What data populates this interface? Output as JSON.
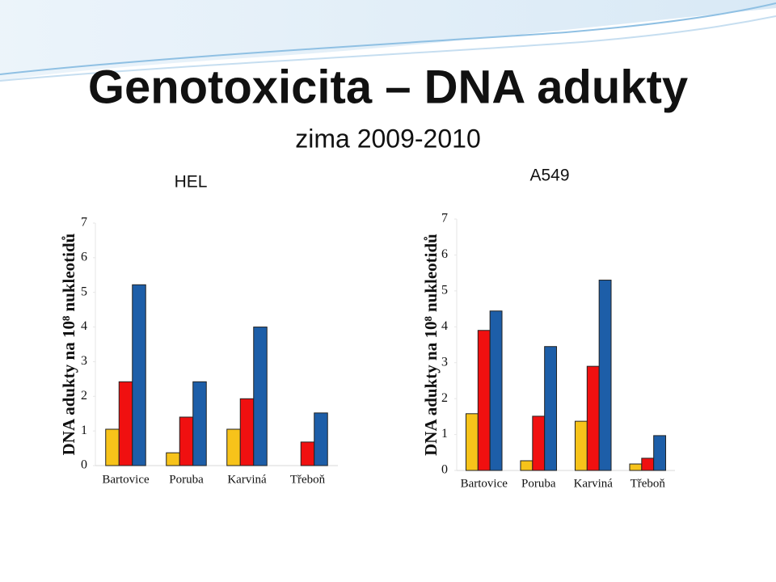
{
  "title": "Genotoxicita – DNA adukty",
  "subtitle": "zima 2009-2010",
  "chart_data": [
    {
      "type": "bar",
      "title": "HEL",
      "y_label": "DNA adukty na 10⁸ nukleotidů",
      "categories": [
        "Bartovice",
        "Poruba",
        "Karviná",
        "Třeboň"
      ],
      "series": [
        {
          "color": "#f7c31a",
          "values": [
            1.05,
            0.37,
            1.05,
            null
          ]
        },
        {
          "color": "#f01010",
          "values": [
            2.42,
            1.4,
            1.93,
            0.68
          ]
        },
        {
          "color": "#1d5ea8",
          "values": [
            5.22,
            2.42,
            4.0,
            1.52
          ]
        }
      ],
      "ylim": [
        0,
        7
      ],
      "yticks": [
        0,
        1,
        2,
        3,
        4,
        5,
        6,
        7
      ],
      "grid": false
    },
    {
      "type": "bar",
      "title": "A549",
      "y_label": "DNA adukty na 10⁸ nukleotidů",
      "categories": [
        "Bartovice",
        "Poruba",
        "Karviná",
        "Třeboň"
      ],
      "series": [
        {
          "color": "#f7c31a",
          "values": [
            1.58,
            0.27,
            1.37,
            0.18
          ]
        },
        {
          "color": "#f01010",
          "values": [
            3.9,
            1.51,
            2.9,
            0.34
          ]
        },
        {
          "color": "#1d5ea8",
          "values": [
            4.44,
            3.45,
            5.3,
            0.97
          ]
        }
      ],
      "ylim": [
        0,
        7
      ],
      "yticks": [
        0,
        1,
        2,
        3,
        4,
        5,
        6,
        7
      ],
      "grid": false
    }
  ]
}
